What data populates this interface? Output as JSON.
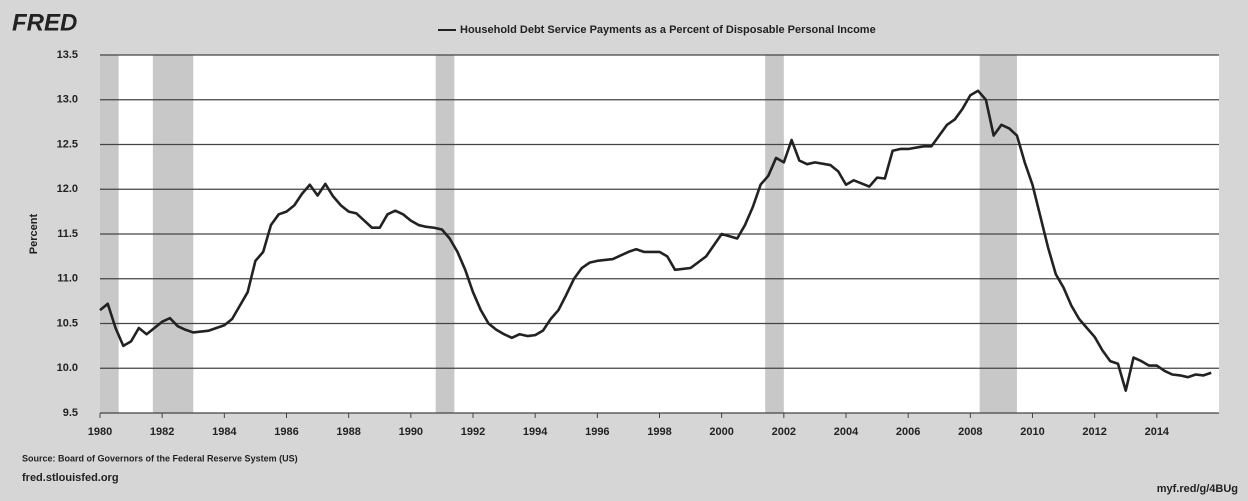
{
  "chart_data": {
    "type": "line",
    "logo": "FRED",
    "title": "Household Debt Service Payments as a Percent of Disposable Personal Income",
    "y_label": "Percent",
    "source": "Source: Board of Governors of the Federal Reserve System (US)",
    "site": "fred.stlouisfed.org",
    "short_link": "myf.red/g/4BUg",
    "xlim": [
      1980,
      2016
    ],
    "xticks": [
      1980,
      1982,
      1984,
      1986,
      1988,
      1990,
      1992,
      1994,
      1996,
      1998,
      2000,
      2002,
      2004,
      2006,
      2008,
      2010,
      2012,
      2014
    ],
    "ylim": [
      9.5,
      13.5
    ],
    "yticks": [
      9.5,
      {
        "value": 10,
        "label": "10.0"
      },
      10.5,
      {
        "value": 11,
        "label": "11.0"
      },
      11.5,
      {
        "value": 12,
        "label": "12.0"
      },
      12.5,
      {
        "value": 13,
        "label": "13.0"
      },
      13.5
    ],
    "grid": true,
    "recession_color": "#c8c8c8",
    "recessions": [
      [
        1980.0,
        1980.6
      ],
      [
        1981.7,
        1983.0
      ],
      [
        1990.8,
        1991.4
      ],
      [
        2001.4,
        2002.0
      ],
      [
        2008.3,
        2009.5
      ]
    ],
    "series": [
      {
        "name": "Household Debt Service Payments as a Percent of Disposable Personal Income",
        "color": "#222222",
        "x": [
          1980.0,
          1980.25,
          1980.5,
          1980.75,
          1981.0,
          1981.25,
          1981.5,
          1981.75,
          1982.0,
          1982.25,
          1982.5,
          1982.75,
          1983.0,
          1983.5,
          1984.0,
          1984.25,
          1984.5,
          1984.75,
          1985.0,
          1985.25,
          1985.5,
          1985.75,
          1986.0,
          1986.25,
          1986.5,
          1986.75,
          1987.0,
          1987.25,
          1987.5,
          1987.75,
          1988.0,
          1988.25,
          1988.5,
          1988.75,
          1989.0,
          1989.25,
          1989.5,
          1989.75,
          1990.0,
          1990.25,
          1990.5,
          1990.75,
          1991.0,
          1991.25,
          1991.5,
          1991.75,
          1992.0,
          1992.25,
          1992.5,
          1992.75,
          1993.0,
          1993.25,
          1993.5,
          1993.75,
          1994.0,
          1994.25,
          1994.5,
          1994.75,
          1995.0,
          1995.25,
          1995.5,
          1995.75,
          1996.0,
          1996.5,
          1997.0,
          1997.25,
          1997.5,
          1998.0,
          1998.25,
          1998.5,
          1999.0,
          1999.5,
          2000.0,
          2000.5,
          2000.75,
          2001.0,
          2001.25,
          2001.5,
          2001.75,
          2002.0,
          2002.25,
          2002.5,
          2002.75,
          2003.0,
          2003.5,
          2003.75,
          2004.0,
          2004.25,
          2004.75,
          2005.0,
          2005.25,
          2005.5,
          2005.75,
          2006.0,
          2006.5,
          2006.75,
          2007.0,
          2007.25,
          2007.5,
          2007.75,
          2008.0,
          2008.25,
          2008.5,
          2008.75,
          2009.0,
          2009.25,
          2009.5,
          2009.75,
          2010.0,
          2010.25,
          2010.5,
          2010.75,
          2011.0,
          2011.25,
          2011.5,
          2011.75,
          2012.0,
          2012.25,
          2012.5,
          2012.75,
          2013.0,
          2013.25,
          2013.5,
          2013.75,
          2014.0,
          2014.25,
          2014.5,
          2014.75,
          2015.0,
          2015.25,
          2015.5,
          2015.75
        ],
        "values": [
          10.65,
          10.72,
          10.45,
          10.25,
          10.3,
          10.45,
          10.38,
          10.45,
          10.52,
          10.56,
          10.47,
          10.43,
          10.4,
          10.42,
          10.48,
          10.55,
          10.7,
          10.85,
          11.2,
          11.3,
          11.6,
          11.72,
          11.75,
          11.82,
          11.95,
          12.05,
          11.93,
          12.06,
          11.92,
          11.82,
          11.75,
          11.73,
          11.65,
          11.57,
          11.57,
          11.72,
          11.76,
          11.72,
          11.65,
          11.6,
          11.58,
          11.57,
          11.55,
          11.45,
          11.3,
          11.1,
          10.85,
          10.65,
          10.5,
          10.43,
          10.38,
          10.34,
          10.38,
          10.36,
          10.37,
          10.42,
          10.55,
          10.65,
          10.82,
          11.0,
          11.12,
          11.18,
          11.2,
          11.22,
          11.3,
          11.33,
          11.3,
          11.3,
          11.25,
          11.1,
          11.12,
          11.25,
          11.5,
          11.45,
          11.6,
          11.8,
          12.05,
          12.15,
          12.35,
          12.3,
          12.55,
          12.32,
          12.28,
          12.3,
          12.27,
          12.2,
          12.05,
          12.1,
          12.03,
          12.13,
          12.12,
          12.43,
          12.45,
          12.45,
          12.48,
          12.48,
          12.6,
          12.72,
          12.78,
          12.9,
          13.05,
          13.1,
          13.0,
          12.6,
          12.72,
          12.68,
          12.6,
          12.3,
          12.05,
          11.7,
          11.35,
          11.05,
          10.9,
          10.7,
          10.55,
          10.45,
          10.35,
          10.2,
          10.08,
          10.05,
          9.75,
          10.12,
          10.08,
          10.03,
          10.03,
          9.97,
          9.93,
          9.92,
          9.9,
          9.93,
          9.92,
          9.95
        ]
      }
    ]
  }
}
